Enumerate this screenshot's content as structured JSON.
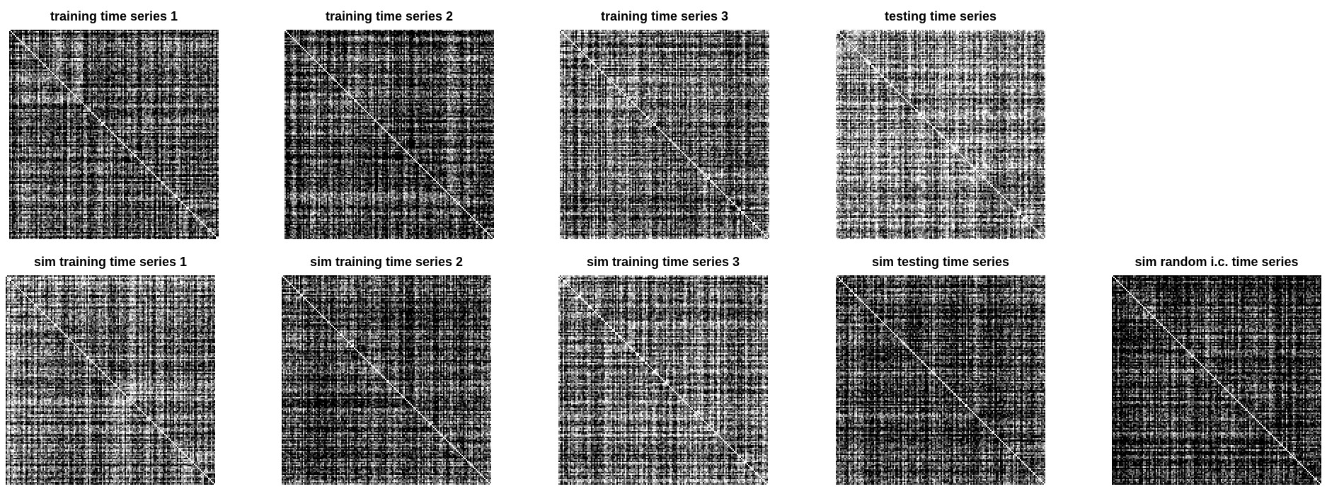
{
  "chart_data": [
    {
      "type": "heatmap",
      "title": "training time series 1",
      "colormap": "gray",
      "diagonal": "white",
      "mean_brightness": 0.28
    },
    {
      "type": "heatmap",
      "title": "training time series 2",
      "colormap": "gray",
      "diagonal": "white",
      "mean_brightness": 0.22
    },
    {
      "type": "heatmap",
      "title": "training time series 3",
      "colormap": "gray",
      "diagonal": "white",
      "mean_brightness": 0.38
    },
    {
      "type": "heatmap",
      "title": "testing time series",
      "colormap": "gray",
      "diagonal": "white",
      "mean_brightness": 0.52
    },
    {
      "type": "heatmap",
      "title": "sim training time series 1",
      "colormap": "gray",
      "diagonal": "white",
      "mean_brightness": 0.4
    },
    {
      "type": "heatmap",
      "title": "sim training time series 2",
      "colormap": "gray",
      "diagonal": "white",
      "mean_brightness": 0.25
    },
    {
      "type": "heatmap",
      "title": "sim training time series 3",
      "colormap": "gray",
      "diagonal": "white",
      "mean_brightness": 0.45
    },
    {
      "type": "heatmap",
      "title": "sim testing time series",
      "colormap": "gray",
      "diagonal": "white",
      "mean_brightness": 0.2
    },
    {
      "type": "heatmap",
      "title": "sim random i.c. time series",
      "colormap": "gray",
      "diagonal": "white",
      "mean_brightness": 0.17
    }
  ]
}
